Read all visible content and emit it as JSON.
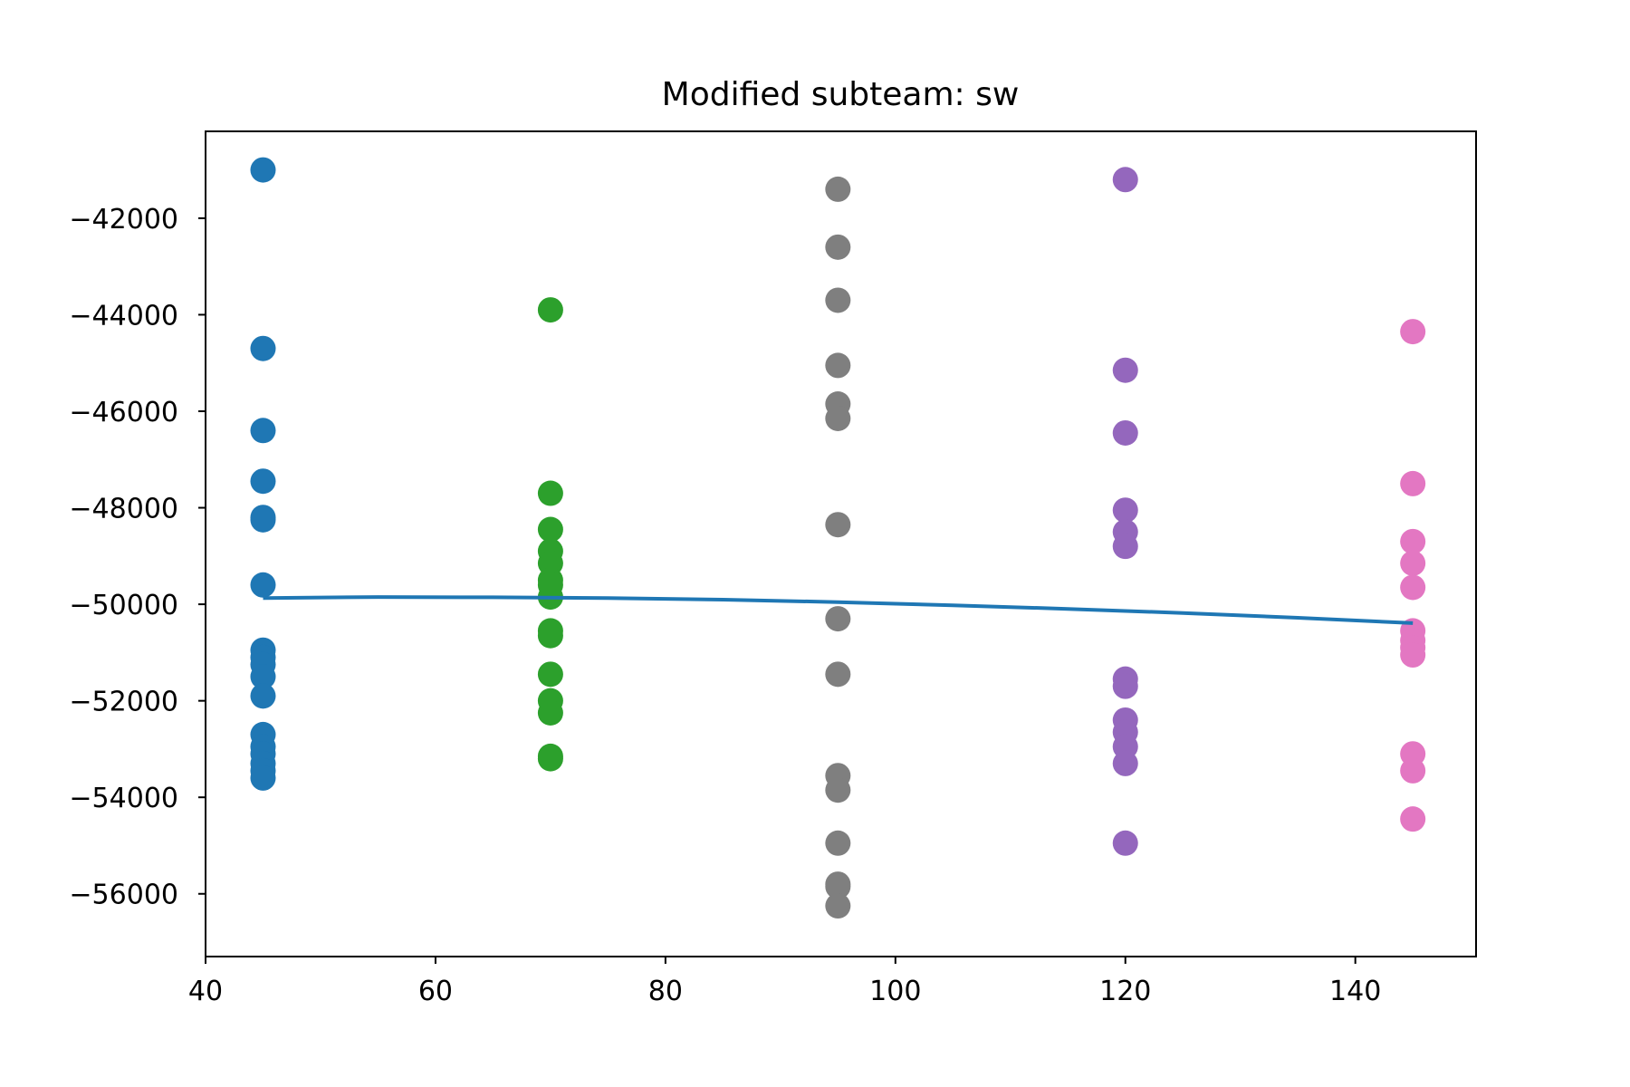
{
  "chart_data": {
    "type": "scatter",
    "title": "Modified subteam: sw",
    "xlabel": "",
    "ylabel": "",
    "xlim": [
      40,
      150.5
    ],
    "ylim": [
      -57300,
      -40200
    ],
    "x_ticks": [
      40,
      60,
      80,
      100,
      120,
      140
    ],
    "x_tick_labels": [
      "40",
      "60",
      "80",
      "100",
      "120",
      "140"
    ],
    "y_ticks": [
      -56000,
      -54000,
      -52000,
      -50000,
      -48000,
      -46000,
      -44000,
      -42000
    ],
    "y_tick_labels": [
      "−56000",
      "−54000",
      "−52000",
      "−50000",
      "−48000",
      "−46000",
      "−44000",
      "−42000"
    ],
    "grid": false,
    "series": [
      {
        "x": 45,
        "color": "#1f77b4",
        "values": [
          -41000,
          -44700,
          -46400,
          -47450,
          -48200,
          -48250,
          -49600,
          -50950,
          -51100,
          -51250,
          -51500,
          -51900,
          -52700,
          -52950,
          -53100,
          -53300,
          -53450,
          -53600
        ]
      },
      {
        "x": 70,
        "color": "#2ca02c",
        "values": [
          -43900,
          -47700,
          -48450,
          -48900,
          -49150,
          -49500,
          -49600,
          -49850,
          -50550,
          -50650,
          -51450,
          -52000,
          -52250,
          -53150,
          -53200
        ]
      },
      {
        "x": 95,
        "color": "#7f7f7f",
        "values": [
          -41400,
          -42600,
          -43700,
          -45050,
          -45850,
          -46150,
          -48350,
          -50300,
          -51450,
          -53550,
          -53850,
          -54950,
          -55800,
          -55850,
          -56250
        ]
      },
      {
        "x": 120,
        "color": "#9467bd",
        "values": [
          -41200,
          -45150,
          -46450,
          -48050,
          -48500,
          -48800,
          -51550,
          -51700,
          -52400,
          -52650,
          -52950,
          -53300,
          -54950
        ]
      },
      {
        "x": 145,
        "color": "#e377c2",
        "values": [
          -44350,
          -47500,
          -48700,
          -49150,
          -49650,
          -50550,
          -50750,
          -50900,
          -51050,
          -53100,
          -53450,
          -54450
        ]
      }
    ],
    "trend_line": {
      "color": "#1f77b4",
      "x": [
        45,
        55,
        65,
        75,
        85,
        95,
        105,
        115,
        125,
        135,
        145
      ],
      "y": [
        -49870,
        -49850,
        -49855,
        -49870,
        -49905,
        -49955,
        -50020,
        -50095,
        -50180,
        -50280,
        -50390
      ]
    }
  }
}
